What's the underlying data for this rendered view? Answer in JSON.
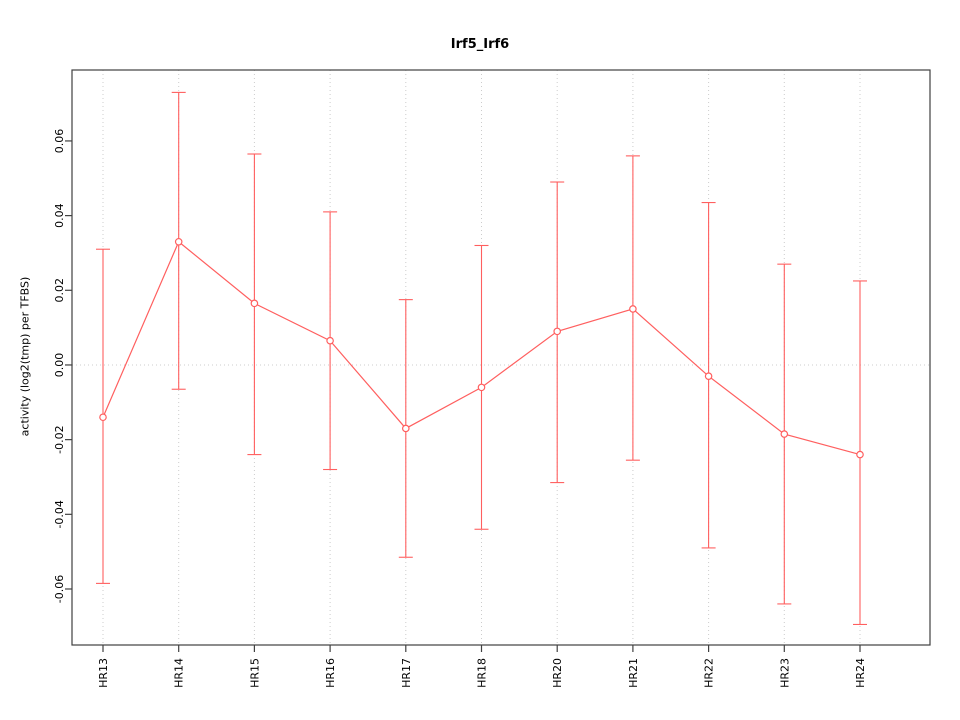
{
  "chart_data": {
    "type": "line",
    "title": "Irf5_Irf6",
    "xlabel": "",
    "ylabel": "activity (log2(tmp) per TFBS)",
    "categories": [
      "HR13",
      "HR14",
      "HR15",
      "HR16",
      "HR17",
      "HR18",
      "HR20",
      "HR21",
      "HR22",
      "HR23",
      "HR24"
    ],
    "values": [
      -0.014,
      0.033,
      0.0165,
      0.0065,
      -0.017,
      -0.006,
      0.009,
      0.015,
      -0.003,
      -0.0185,
      -0.024
    ],
    "error_low": [
      -0.0585,
      -0.0065,
      -0.024,
      -0.028,
      -0.0515,
      -0.044,
      -0.0315,
      -0.0255,
      -0.049,
      -0.064,
      -0.0695
    ],
    "error_high": [
      0.031,
      0.073,
      0.0565,
      0.041,
      0.0175,
      0.032,
      0.049,
      0.056,
      0.0435,
      0.027,
      0.0225
    ],
    "yticks": [
      -0.06,
      -0.04,
      -0.02,
      0.0,
      0.02,
      0.04,
      0.06
    ],
    "ylim": [
      -0.075,
      0.079
    ],
    "grid": true,
    "zero_line": true,
    "legend": "none",
    "colors": {
      "series": "#ff5f5f",
      "grid": "#cccccc",
      "box": "#404040",
      "text": "#000000"
    }
  }
}
